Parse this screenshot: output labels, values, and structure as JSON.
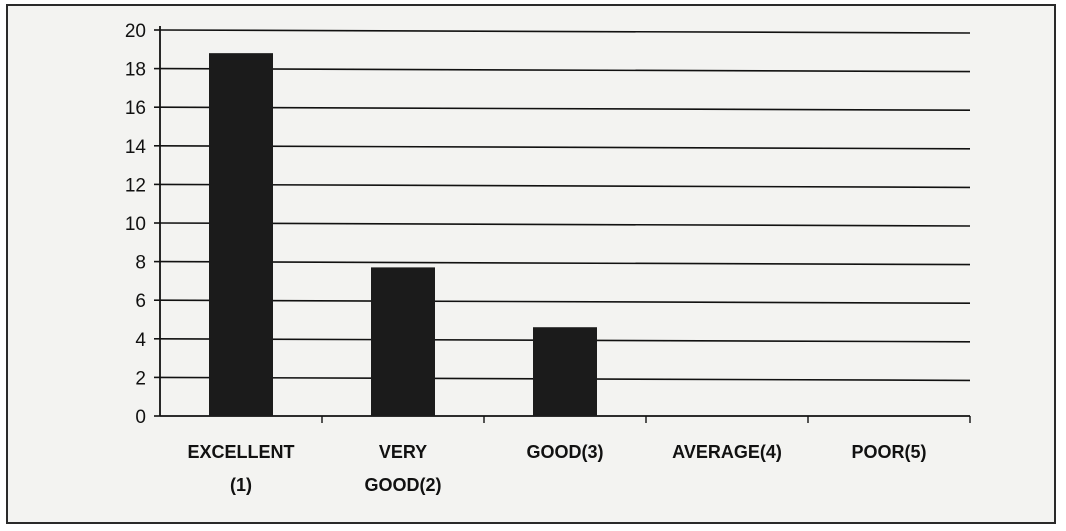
{
  "chart_data": {
    "type": "bar",
    "categories": [
      [
        "EXCELLENT",
        "(1)"
      ],
      [
        "VERY",
        "GOOD(2)"
      ],
      [
        "GOOD(3)"
      ],
      [
        "AVERAGE(4)"
      ],
      [
        "POOR(5)"
      ]
    ],
    "values": [
      18.8,
      7.7,
      4.6,
      0,
      0
    ],
    "ylim": [
      0,
      20
    ],
    "y_ticks": [
      "0",
      "2",
      "4",
      "6",
      "8",
      "10",
      "12",
      "14",
      "16",
      "18",
      "20"
    ],
    "grid": true,
    "title": "",
    "xlabel": "",
    "ylabel": "",
    "colors": {
      "bar": "#1b1b1b",
      "grid": "#111111",
      "axis": "#111111",
      "background": "#f3f3f1"
    }
  }
}
